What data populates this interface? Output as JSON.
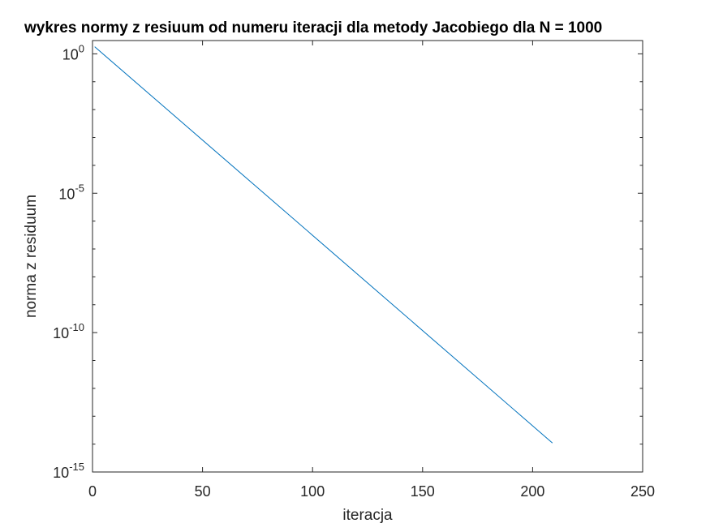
{
  "chart_data": {
    "type": "line",
    "title": "wykres normy z resiuum od numeru iteracji dla metody Jacobiego dla N = 1000",
    "xlabel": "iteracja",
    "ylabel": "norma z residuum",
    "xlim": [
      0,
      250
    ],
    "ylim": [
      1e-15,
      3
    ],
    "yscale": "log",
    "xticks": [
      "0",
      "50",
      "100",
      "150",
      "200",
      "250"
    ],
    "yticks": [
      {
        "base": "10",
        "exp": "0",
        "value": 1
      },
      {
        "base": "10",
        "exp": "-5",
        "value": 1e-05
      },
      {
        "base": "10",
        "exp": "-10",
        "value": 1e-10
      },
      {
        "base": "10",
        "exp": "-15",
        "value": 1e-15
      }
    ],
    "grid": false,
    "series": [
      {
        "color": "#0072bd",
        "x": [
          1,
          209
        ],
        "y": [
          1.8,
          1.1e-14
        ]
      }
    ]
  }
}
